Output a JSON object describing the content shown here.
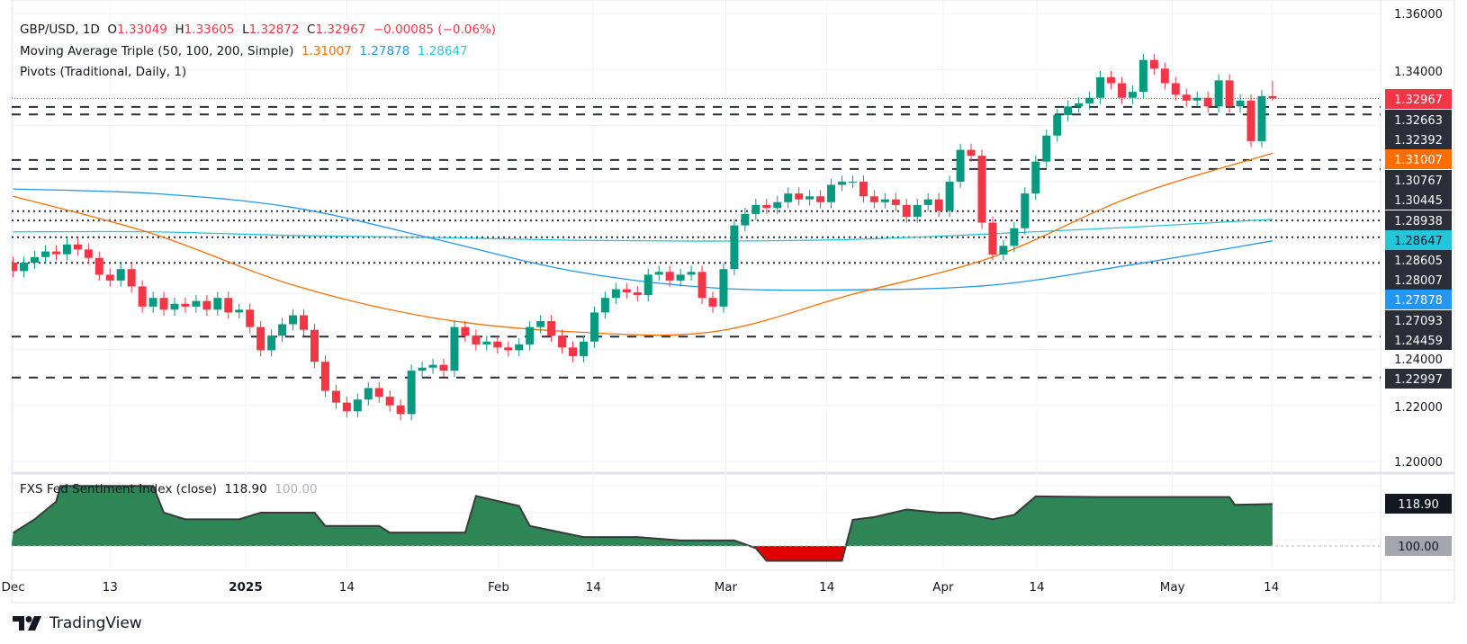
{
  "header": {
    "symbol": "GBP/USD, 1D",
    "o_label": "O",
    "o": "1.33049",
    "h_label": "H",
    "h": "1.33605",
    "l_label": "L",
    "l": "1.32872",
    "c_label": "C",
    "c": "1.32967",
    "change": "−0.00085 (−0.06%)",
    "ma_title": "Moving Average Triple (50, 100, 200, Simple)",
    "ma50": "1.31007",
    "ma100": "1.27878",
    "ma200": "1.28647",
    "pivots_title": "Pivots (Traditional, Daily, 1)"
  },
  "sentiment": {
    "title": "FXS Fed Sentiment Index (close)",
    "value": "118.90",
    "baseline": "100.00"
  },
  "brand": "TradingView",
  "colors": {
    "up": "#089981",
    "down": "#f23645",
    "ma50": "#ff6d00",
    "ma100": "#2196f3",
    "ma200": "#26c6da",
    "sent_fill": "#2e8555",
    "sent_neg": "#e00000"
  },
  "chart_data": {
    "type": "candlestick",
    "price_range": [
      1.2,
      1.36
    ],
    "price_ticks": [
      "1.36000",
      "1.34000",
      "1.24000",
      "1.22000",
      "1.20000"
    ],
    "x_ticks": [
      {
        "label": "Dec",
        "bar": 0
      },
      {
        "label": "13",
        "bar": 9
      },
      {
        "label": "2025",
        "bar": 21.6,
        "bold": true
      },
      {
        "label": "14",
        "bar": 31
      },
      {
        "label": "Feb",
        "bar": 45.1
      },
      {
        "label": "14",
        "bar": 53.9
      },
      {
        "label": "Mar",
        "bar": 66.2
      },
      {
        "label": "14",
        "bar": 75.6
      },
      {
        "label": "Apr",
        "bar": 86.4
      },
      {
        "label": "14",
        "bar": 95.1
      },
      {
        "label": "May",
        "bar": 107.7
      },
      {
        "label": "14",
        "bar": 116.9
      }
    ],
    "closes": [
      1.268,
      1.271,
      1.273,
      1.275,
      1.274,
      1.2775,
      1.2757,
      1.2727,
      1.2667,
      1.2646,
      1.2687,
      1.2625,
      1.2553,
      1.2584,
      1.2542,
      1.2563,
      1.2553,
      1.2573,
      1.2542,
      1.2584,
      1.2532,
      1.2542,
      1.248,
      1.2397,
      1.2449,
      1.249,
      1.2522,
      1.247,
      1.2356,
      1.2252,
      1.221,
      1.2179,
      1.2221,
      1.2262,
      1.2231,
      1.22,
      1.2169,
      1.2324,
      1.2335,
      1.2345,
      1.2324,
      1.248,
      1.2449,
      1.2418,
      1.2428,
      1.2407,
      1.2397,
      1.2418,
      1.248,
      1.2501,
      1.2449,
      1.2407,
      1.2376,
      1.2428,
      1.2532,
      1.2584,
      1.2615,
      1.2604,
      1.2594,
      1.2667,
      1.2677,
      1.2646,
      1.2667,
      1.2677,
      1.2584,
      1.2553,
      1.2687,
      1.2843,
      1.2884,
      1.2916,
      1.2905,
      1.2926,
      1.2957,
      1.2936,
      1.2947,
      1.2926,
      1.2988,
      1.2999,
      1.2999,
      1.2947,
      1.2926,
      1.2936,
      1.2916,
      1.2874,
      1.2916,
      1.2936,
      1.2895,
      1.2999,
      1.3113,
      1.3092,
      1.2853,
      1.2739,
      1.277,
      1.2833,
      1.2957,
      1.3071,
      1.3164,
      1.3237,
      1.3268,
      1.3279,
      1.3299,
      1.3372,
      1.3351,
      1.3299,
      1.332,
      1.3434,
      1.3403,
      1.3351,
      1.331,
      1.3289,
      1.3299,
      1.3268,
      1.3361,
      1.3268,
      1.3289,
      1.3144,
      1.3305,
      1.32967
    ],
    "last_bar": {
      "open": 1.33049,
      "high": 1.33605,
      "low": 1.32872,
      "close": 1.32967
    },
    "ma_sample_bars": [
      0,
      13,
      26,
      39,
      52,
      65,
      78,
      91,
      104,
      117
    ],
    "ma50": [
      1.2947,
      1.2813,
      1.263,
      1.2513,
      1.2463,
      1.2463,
      1.2597,
      1.273,
      1.2947,
      1.31007
    ],
    "ma100": [
      1.2973,
      1.2957,
      1.2907,
      1.2796,
      1.268,
      1.262,
      1.2613,
      1.263,
      1.2703,
      1.27878
    ],
    "ma200": [
      1.282,
      1.282,
      1.2807,
      1.28,
      1.279,
      1.2787,
      1.2793,
      1.2813,
      1.2837,
      1.28647
    ],
    "pivots": [
      {
        "value": "1.32663",
        "style": "dashed"
      },
      {
        "value": "1.32392",
        "style": "dashed"
      },
      {
        "value": "1.30767",
        "style": "dashed"
      },
      {
        "value": "1.30445",
        "style": "dashed"
      },
      {
        "value": "1.28938",
        "style": "dotted"
      },
      {
        "value": "1.28605",
        "style": "dotted"
      },
      {
        "value": "1.28007",
        "style": "dotted"
      },
      {
        "value": "1.27093",
        "style": "dotted"
      },
      {
        "value": "1.24459",
        "style": "dashed"
      },
      {
        "value": "1.22997",
        "style": "dashed"
      }
    ],
    "price_labels": [
      {
        "value": "1.32967",
        "kind": "last"
      },
      {
        "value": "1.32663",
        "kind": "pivot"
      },
      {
        "value": "1.32392",
        "kind": "pivot"
      },
      {
        "value": "1.31007",
        "kind": "ma50"
      },
      {
        "value": "1.30767",
        "kind": "pivot"
      },
      {
        "value": "1.30445",
        "kind": "pivot"
      },
      {
        "value": "1.28938",
        "kind": "pivot"
      },
      {
        "value": "1.28647",
        "kind": "ma200"
      },
      {
        "value": "1.28605",
        "kind": "pivot"
      },
      {
        "value": "1.28007",
        "kind": "pivot"
      },
      {
        "value": "1.27878",
        "kind": "ma100"
      },
      {
        "value": "1.27093",
        "kind": "pivot"
      },
      {
        "value": "1.24459",
        "kind": "pivot"
      },
      {
        "value": "1.22997",
        "kind": "pivot"
      }
    ],
    "sentiment_baseline": 100,
    "sentiment_points": [
      [
        0,
        105.9
      ],
      [
        2,
        112
      ],
      [
        4,
        120
      ],
      [
        4.4,
        127
      ],
      [
        13,
        127
      ],
      [
        14,
        115
      ],
      [
        16,
        112
      ],
      [
        21,
        112
      ],
      [
        23,
        115
      ],
      [
        28,
        115
      ],
      [
        29,
        109
      ],
      [
        34,
        109
      ],
      [
        35,
        106
      ],
      [
        42,
        106
      ],
      [
        43,
        122.5
      ],
      [
        47,
        118
      ],
      [
        48,
        109
      ],
      [
        53,
        104
      ],
      [
        58,
        104
      ],
      [
        62,
        102.5
      ],
      [
        67,
        102.5
      ],
      [
        69,
        99
      ],
      [
        70,
        93.3
      ],
      [
        77,
        93.3
      ],
      [
        78,
        111.8
      ],
      [
        80,
        113
      ],
      [
        83,
        116.4
      ],
      [
        86,
        115
      ],
      [
        88,
        115
      ],
      [
        91,
        112
      ],
      [
        93,
        114
      ],
      [
        95,
        122.3
      ],
      [
        101,
        122
      ],
      [
        113,
        122
      ],
      [
        113.5,
        118.5
      ],
      [
        117,
        118.9
      ]
    ]
  }
}
